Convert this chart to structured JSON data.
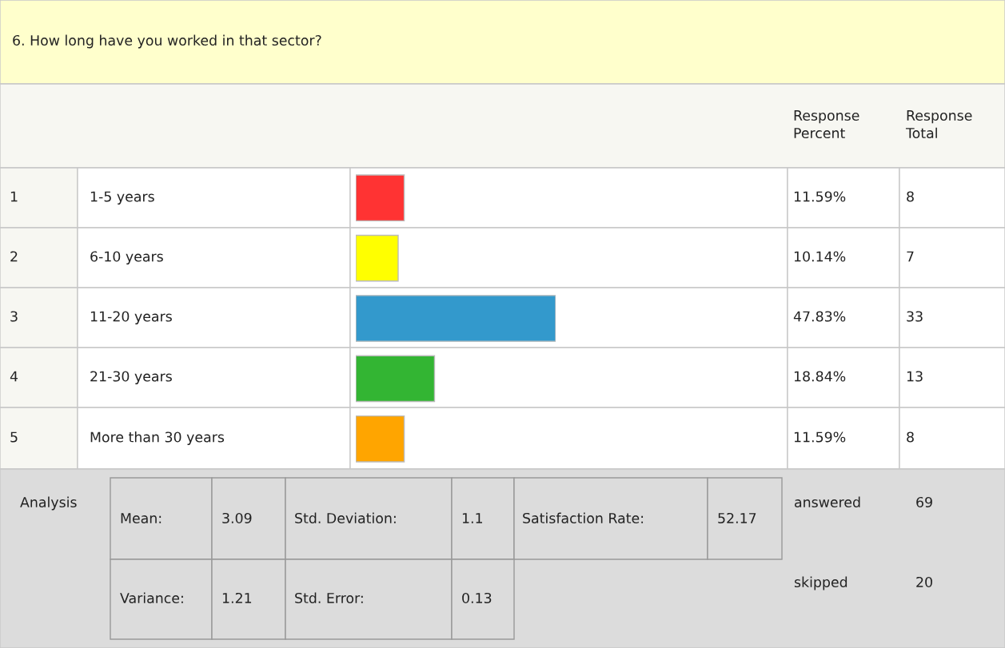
{
  "chart_data": {
    "type": "bar",
    "orientation": "horizontal",
    "title": "6. How long have you worked in that sector?",
    "categories": [
      "1-5 years",
      "6-10 years",
      "11-20 years",
      "21-30 years",
      "More than 30 years"
    ],
    "values": [
      11.59,
      10.14,
      47.83,
      18.84,
      11.59
    ],
    "value_labels": [
      "11.59%",
      "10.14%",
      "47.83%",
      "18.84%",
      "11.59%"
    ],
    "colors": [
      "#ff3333",
      "#ffff00",
      "#3399cc",
      "#33b533",
      "#ffa500"
    ],
    "annotations": [
      "Response Percent",
      "Response Total",
      "1",
      "2",
      "3",
      "4",
      "5",
      "8",
      "7",
      "33",
      "13",
      "8",
      "Analysis",
      "Mean:",
      "3.09",
      "Std. Deviation:",
      "1.1",
      "Satisfaction Rate:",
      "52.17",
      "Variance:",
      "1.21",
      "Std. Error:",
      "0.13",
      "answered",
      "69",
      "skipped",
      "20"
    ]
  }
}
